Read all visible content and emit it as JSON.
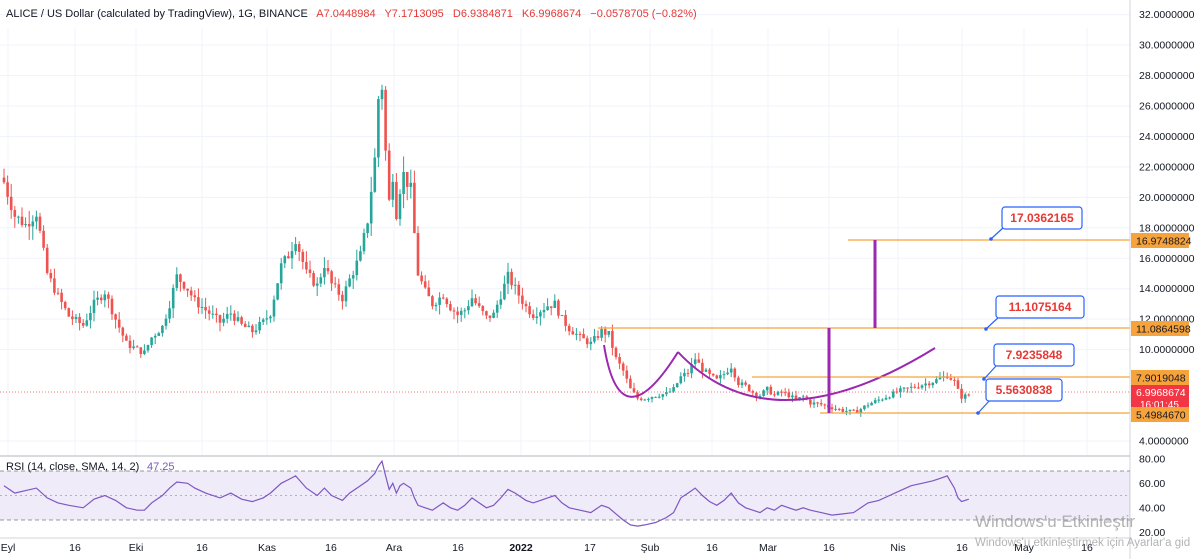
{
  "header": {
    "symbol": "ALICE / US Dollar (calculated by TradingView), 1G, BINANCE",
    "open": "A7.0448984",
    "high": "Y7.1713095",
    "low": "D6.9384871",
    "close": "K6.9968674",
    "change": "−0.0578705 (−0.82%)"
  },
  "chart_data": {
    "type": "candlestick",
    "x_tick_labels": [
      "Eyl",
      "16",
      "Eki",
      "16",
      "Kas",
      "16",
      "Ara",
      "16",
      "2022",
      "17",
      "Şub",
      "16",
      "Mar",
      "16",
      "Nis",
      "16",
      "May",
      "16"
    ],
    "y_tick_labels": [
      "32.0000000",
      "30.0000000",
      "28.0000000",
      "26.0000000",
      "24.0000000",
      "22.0000000",
      "20.0000000",
      "18.0000000",
      "16.0000000",
      "14.0000000",
      "12.0000000",
      "10.0000000",
      "4.0000000"
    ],
    "y_range": [
      3.0,
      33.0
    ],
    "price_labels": {
      "l1": "16.9748824",
      "l2": "11.0864598",
      "l3": "7.9019048",
      "l4": "5.4984670",
      "current": "6.9968674",
      "countdown": "16:01:45"
    },
    "horizontal_levels": [
      16.97,
      11.09,
      7.9,
      5.5
    ],
    "callouts": [
      "17.0362165",
      "11.1075164",
      "7.9235848",
      "5.5630838"
    ],
    "close_path": [
      [
        0,
        21.0
      ],
      [
        3,
        18.8
      ],
      [
        6,
        18.2
      ],
      [
        9,
        19.0
      ],
      [
        12,
        15.0
      ],
      [
        15,
        13.5
      ],
      [
        18,
        12.2
      ],
      [
        22,
        11.6
      ],
      [
        25,
        13.0
      ],
      [
        28,
        13.8
      ],
      [
        31,
        12.0
      ],
      [
        34,
        10.4
      ],
      [
        37,
        10.0
      ],
      [
        39,
        9.8
      ],
      [
        41,
        10.8
      ],
      [
        44,
        11.5
      ],
      [
        46,
        13.0
      ],
      [
        48,
        14.8
      ],
      [
        51,
        14.0
      ],
      [
        53,
        13.2
      ],
      [
        56,
        12.6
      ],
      [
        60,
        11.8
      ],
      [
        63,
        12.4
      ],
      [
        66,
        11.6
      ],
      [
        69,
        11.2
      ],
      [
        72,
        11.8
      ],
      [
        74,
        12.4
      ],
      [
        77,
        15.5
      ],
      [
        79,
        16.2
      ],
      [
        81,
        17.3
      ],
      [
        84,
        15.0
      ],
      [
        87,
        14.2
      ],
      [
        89,
        15.6
      ],
      [
        91,
        14.3
      ],
      [
        94,
        13.4
      ],
      [
        96,
        14.6
      ],
      [
        99,
        16.2
      ],
      [
        101,
        18.5
      ],
      [
        103,
        22.5
      ],
      [
        104,
        26.5
      ],
      [
        105,
        27.3
      ],
      [
        106,
        23.0
      ],
      [
        107,
        19.7
      ],
      [
        108,
        21.5
      ],
      [
        109,
        19.0
      ],
      [
        110,
        20.6
      ],
      [
        111,
        21.5
      ],
      [
        113,
        20.5
      ],
      [
        114,
        17.6
      ],
      [
        115,
        15.0
      ],
      [
        117,
        13.8
      ],
      [
        119,
        13.0
      ],
      [
        122,
        13.6
      ],
      [
        124,
        12.8
      ],
      [
        126,
        12.3
      ],
      [
        128,
        12.6
      ],
      [
        130,
        13.4
      ],
      [
        132,
        12.7
      ],
      [
        134,
        12.1
      ],
      [
        136,
        12.3
      ],
      [
        138,
        13.6
      ],
      [
        140,
        14.8
      ],
      [
        142,
        14.0
      ],
      [
        145,
        12.8
      ],
      [
        147,
        12.3
      ],
      [
        149,
        12.6
      ],
      [
        151,
        12.9
      ],
      [
        153,
        13.0
      ],
      [
        155,
        12.0
      ],
      [
        157,
        11.4
      ],
      [
        160,
        10.8
      ],
      [
        163,
        10.4
      ],
      [
        166,
        11.2
      ],
      [
        168,
        11.0
      ],
      [
        170,
        9.4
      ],
      [
        172,
        8.6
      ],
      [
        174,
        7.4
      ],
      [
        176,
        6.8
      ],
      [
        178,
        6.8
      ],
      [
        181,
        7.0
      ],
      [
        184,
        7.1
      ],
      [
        186,
        7.4
      ],
      [
        188,
        8.2
      ],
      [
        190,
        8.5
      ],
      [
        192,
        9.4
      ],
      [
        194,
        8.7
      ],
      [
        196,
        8.3
      ],
      [
        198,
        8.0
      ],
      [
        200,
        8.4
      ],
      [
        202,
        8.9
      ],
      [
        204,
        7.8
      ],
      [
        206,
        7.6
      ],
      [
        208,
        7.2
      ],
      [
        210,
        7.0
      ],
      [
        212,
        7.4
      ],
      [
        214,
        7.0
      ],
      [
        216,
        7.2
      ],
      [
        218,
        7.0
      ],
      [
        220,
        6.7
      ],
      [
        222,
        6.9
      ],
      [
        224,
        6.5
      ],
      [
        227,
        6.4
      ],
      [
        230,
        6.2
      ],
      [
        233,
        6.0
      ],
      [
        236,
        5.9
      ],
      [
        238,
        6.1
      ],
      [
        240,
        6.4
      ],
      [
        243,
        6.7
      ],
      [
        246,
        7.0
      ],
      [
        249,
        7.3
      ],
      [
        252,
        7.5
      ],
      [
        255,
        7.7
      ],
      [
        258,
        7.9
      ],
      [
        260,
        8.1
      ],
      [
        262,
        8.3
      ],
      [
        264,
        7.9
      ],
      [
        265,
        7.3
      ],
      [
        266,
        6.9
      ],
      [
        268,
        7.0
      ]
    ],
    "rsi": {
      "label": "RSI (14, close, SMA, 14, 2)",
      "value": "47.25",
      "y_tick_labels": [
        "80.00",
        "60.00",
        "40.00",
        "20.00"
      ],
      "y_range": [
        15,
        85
      ],
      "band": [
        30,
        70
      ],
      "values": [
        [
          0,
          58
        ],
        [
          3,
          52
        ],
        [
          6,
          54
        ],
        [
          9,
          56
        ],
        [
          12,
          48
        ],
        [
          15,
          44
        ],
        [
          18,
          42
        ],
        [
          22,
          40
        ],
        [
          25,
          47
        ],
        [
          28,
          50
        ],
        [
          31,
          46
        ],
        [
          34,
          40
        ],
        [
          37,
          38
        ],
        [
          39,
          38
        ],
        [
          41,
          44
        ],
        [
          44,
          50
        ],
        [
          46,
          56
        ],
        [
          48,
          61
        ],
        [
          51,
          60
        ],
        [
          53,
          56
        ],
        [
          56,
          52
        ],
        [
          60,
          48
        ],
        [
          63,
          52
        ],
        [
          66,
          47
        ],
        [
          69,
          45
        ],
        [
          72,
          48
        ],
        [
          74,
          52
        ],
        [
          77,
          60
        ],
        [
          79,
          63
        ],
        [
          81,
          66
        ],
        [
          84,
          56
        ],
        [
          87,
          50
        ],
        [
          89,
          56
        ],
        [
          91,
          50
        ],
        [
          94,
          46
        ],
        [
          96,
          52
        ],
        [
          99,
          58
        ],
        [
          101,
          62
        ],
        [
          103,
          68
        ],
        [
          104,
          74
        ],
        [
          105,
          78
        ],
        [
          106,
          66
        ],
        [
          107,
          55
        ],
        [
          108,
          60
        ],
        [
          109,
          52
        ],
        [
          110,
          58
        ],
        [
          111,
          60
        ],
        [
          113,
          56
        ],
        [
          114,
          48
        ],
        [
          115,
          42
        ],
        [
          117,
          40
        ],
        [
          119,
          38
        ],
        [
          122,
          44
        ],
        [
          124,
          40
        ],
        [
          126,
          38
        ],
        [
          128,
          42
        ],
        [
          130,
          48
        ],
        [
          132,
          44
        ],
        [
          134,
          40
        ],
        [
          136,
          42
        ],
        [
          138,
          48
        ],
        [
          140,
          55
        ],
        [
          142,
          52
        ],
        [
          145,
          46
        ],
        [
          147,
          44
        ],
        [
          149,
          46
        ],
        [
          151,
          48
        ],
        [
          153,
          50
        ],
        [
          155,
          44
        ],
        [
          157,
          40
        ],
        [
          160,
          38
        ],
        [
          163,
          36
        ],
        [
          166,
          42
        ],
        [
          168,
          40
        ],
        [
          170,
          35
        ],
        [
          172,
          30
        ],
        [
          174,
          26
        ],
        [
          176,
          25
        ],
        [
          178,
          26
        ],
        [
          181,
          28
        ],
        [
          184,
          32
        ],
        [
          186,
          36
        ],
        [
          188,
          48
        ],
        [
          190,
          52
        ],
        [
          192,
          56
        ],
        [
          194,
          50
        ],
        [
          196,
          45
        ],
        [
          198,
          42
        ],
        [
          200,
          46
        ],
        [
          202,
          52
        ],
        [
          204,
          44
        ],
        [
          206,
          40
        ],
        [
          208,
          38
        ],
        [
          210,
          36
        ],
        [
          212,
          40
        ],
        [
          214,
          38
        ],
        [
          216,
          42
        ],
        [
          218,
          40
        ],
        [
          220,
          38
        ],
        [
          222,
          40
        ],
        [
          224,
          38
        ],
        [
          227,
          36
        ],
        [
          230,
          34
        ],
        [
          233,
          35
        ],
        [
          236,
          36
        ],
        [
          238,
          40
        ],
        [
          240,
          44
        ],
        [
          243,
          46
        ],
        [
          246,
          50
        ],
        [
          249,
          54
        ],
        [
          252,
          58
        ],
        [
          255,
          60
        ],
        [
          258,
          62
        ],
        [
          260,
          64
        ],
        [
          262,
          66
        ],
        [
          264,
          56
        ],
        [
          265,
          48
        ],
        [
          266,
          45
        ],
        [
          268,
          47
        ]
      ]
    },
    "annotation_colors": {
      "level_line": "#f7a33b",
      "vertical": "#9c27b0",
      "callout_border": "#2962ff",
      "callout_text": "#e53935",
      "bull": "#26a69a",
      "bear": "#ef5350"
    }
  },
  "watermark": {
    "line1": "Windows'u Etkinleştir",
    "line2": "Windows'u etkinleştirmek için Ayarlar'a gid"
  }
}
